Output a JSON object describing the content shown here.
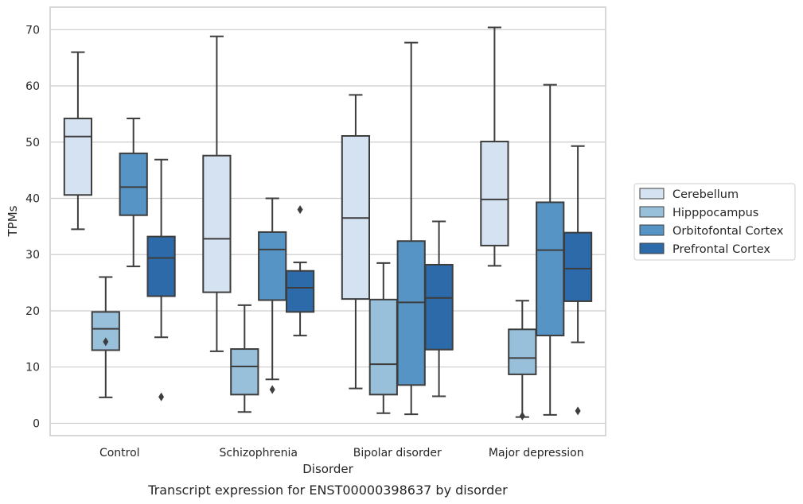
{
  "chart_data": {
    "type": "box",
    "caption": "Transcript expression for ENST00000398637 by disorder",
    "xlabel": "Disorder",
    "ylabel": "TPMs",
    "ylim": [
      -2.2,
      74
    ],
    "yticks": [
      0,
      10,
      20,
      30,
      40,
      50,
      60,
      70
    ],
    "grid": "horizontal",
    "legend_position": "right",
    "categories": [
      "Control",
      "Schizophrenia",
      "Bipolar disorder",
      "Major depression"
    ],
    "series": [
      {
        "name": "Cerebellum",
        "color": "#d4e2f1",
        "boxes": [
          {
            "whisker_low": 34.5,
            "q1": 40.6,
            "median": 51.0,
            "q3": 54.2,
            "whisker_high": 66.0,
            "outliers": []
          },
          {
            "whisker_low": 12.8,
            "q1": 23.3,
            "median": 32.8,
            "q3": 47.6,
            "whisker_high": 68.8,
            "outliers": []
          },
          {
            "whisker_low": 6.2,
            "q1": 22.1,
            "median": 36.5,
            "q3": 51.1,
            "whisker_high": 58.4,
            "outliers": []
          },
          {
            "whisker_low": 28.0,
            "q1": 31.6,
            "median": 39.8,
            "q3": 50.1,
            "whisker_high": 70.4,
            "outliers": []
          }
        ]
      },
      {
        "name": "Hipppocampus",
        "color": "#99c0da",
        "boxes": [
          {
            "whisker_low": 4.6,
            "q1": 13.0,
            "median": 16.8,
            "q3": 19.8,
            "whisker_high": 26.0,
            "outliers": [
              14.5
            ]
          },
          {
            "whisker_low": 2.0,
            "q1": 5.1,
            "median": 10.1,
            "q3": 13.2,
            "whisker_high": 21.0,
            "outliers": []
          },
          {
            "whisker_low": 1.8,
            "q1": 5.1,
            "median": 10.5,
            "q3": 22.0,
            "whisker_high": 28.5,
            "outliers": []
          },
          {
            "whisker_low": 1.1,
            "q1": 8.7,
            "median": 11.6,
            "q3": 16.7,
            "whisker_high": 21.8,
            "outliers": [
              1.3
            ]
          }
        ]
      },
      {
        "name": "Orbitofontal Cortex",
        "color": "#5594c4",
        "boxes": [
          {
            "whisker_low": 27.9,
            "q1": 37.0,
            "median": 42.0,
            "q3": 48.0,
            "whisker_high": 54.2,
            "outliers": []
          },
          {
            "whisker_low": 7.8,
            "q1": 21.9,
            "median": 30.9,
            "q3": 34.0,
            "whisker_high": 40.0,
            "outliers": [
              6.0
            ]
          },
          {
            "whisker_low": 1.6,
            "q1": 6.8,
            "median": 21.5,
            "q3": 32.4,
            "whisker_high": 67.7,
            "outliers": []
          },
          {
            "whisker_low": 1.5,
            "q1": 15.6,
            "median": 30.8,
            "q3": 39.3,
            "whisker_high": 60.2,
            "outliers": []
          }
        ]
      },
      {
        "name": "Prefrontal Cortex",
        "color": "#2c6aa9",
        "boxes": [
          {
            "whisker_low": 15.3,
            "q1": 22.6,
            "median": 29.4,
            "q3": 33.2,
            "whisker_high": 46.9,
            "outliers": [
              4.7
            ]
          },
          {
            "whisker_low": 15.6,
            "q1": 19.8,
            "median": 24.1,
            "q3": 27.1,
            "whisker_high": 28.6,
            "outliers": [
              38.0
            ]
          },
          {
            "whisker_low": 4.8,
            "q1": 13.1,
            "median": 22.3,
            "q3": 28.2,
            "whisker_high": 35.9,
            "outliers": []
          },
          {
            "whisker_low": 14.4,
            "q1": 21.7,
            "median": 27.5,
            "q3": 33.9,
            "whisker_high": 49.3,
            "outliers": [
              2.2
            ]
          }
        ]
      }
    ]
  },
  "colors": {
    "box_edge": "#3d3d3d",
    "grid": "#cccccc",
    "frame": "#cccccc",
    "background": "#ffffff"
  }
}
